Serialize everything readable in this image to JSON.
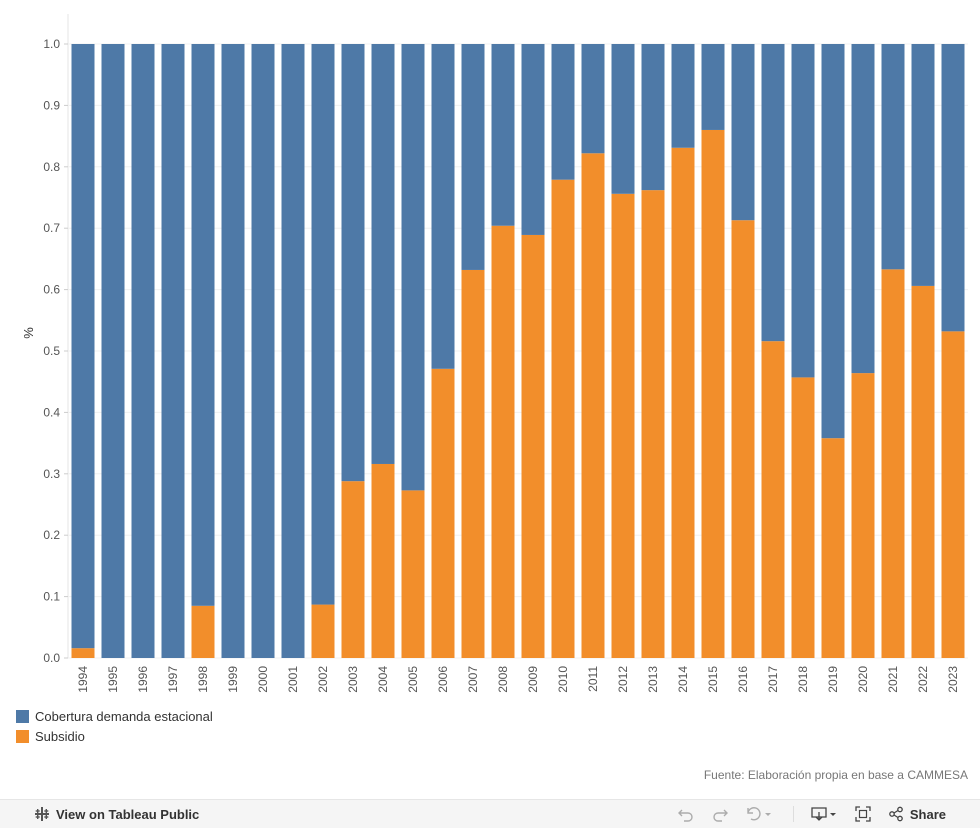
{
  "chart_data": {
    "type": "bar",
    "stacked": true,
    "title": "",
    "xlabel": "",
    "ylabel": "%",
    "ylim": [
      0,
      1
    ],
    "yticks": [
      "0.0",
      "0.1",
      "0.2",
      "0.3",
      "0.4",
      "0.5",
      "0.6",
      "0.7",
      "0.8",
      "0.9",
      "1.0"
    ],
    "categories": [
      "1994",
      "1995",
      "1996",
      "1997",
      "1998",
      "1999",
      "2000",
      "2001",
      "2002",
      "2003",
      "2004",
      "2005",
      "2006",
      "2007",
      "2008",
      "2009",
      "2010",
      "2011",
      "2012",
      "2013",
      "2014",
      "2015",
      "2016",
      "2017",
      "2018",
      "2019",
      "2020",
      "2021",
      "2022",
      "2023"
    ],
    "series": [
      {
        "name": "Subsidio",
        "color": "#f28e2b",
        "values": [
          0.016,
          0,
          0,
          0,
          0.085,
          0,
          0,
          0,
          0.087,
          0.288,
          0.316,
          0.273,
          0.471,
          0.632,
          0.704,
          0.689,
          0.779,
          0.822,
          0.756,
          0.762,
          0.831,
          0.86,
          0.713,
          0.516,
          0.457,
          0.358,
          0.464,
          0.633,
          0.606,
          0.532
        ]
      },
      {
        "name": "Cobertura demanda estacional",
        "color": "#4e79a7",
        "values": [
          0.984,
          1,
          1,
          1,
          0.915,
          1,
          1,
          1,
          0.913,
          0.712,
          0.684,
          0.727,
          0.529,
          0.368,
          0.296,
          0.311,
          0.221,
          0.178,
          0.244,
          0.238,
          0.169,
          0.14,
          0.287,
          0.484,
          0.543,
          0.642,
          0.536,
          0.367,
          0.394,
          0.468
        ]
      }
    ],
    "legend": [
      {
        "label": "Cobertura demanda estacional",
        "color": "#4e79a7"
      },
      {
        "label": "Subsidio",
        "color": "#f28e2b"
      }
    ],
    "legend_position": "bottom-left",
    "grid": true
  },
  "source_note": "Fuente: Elaboración propia en base a CAMMESA",
  "toolbar": {
    "view_label": "View on Tableau Public",
    "share_label": "Share"
  }
}
